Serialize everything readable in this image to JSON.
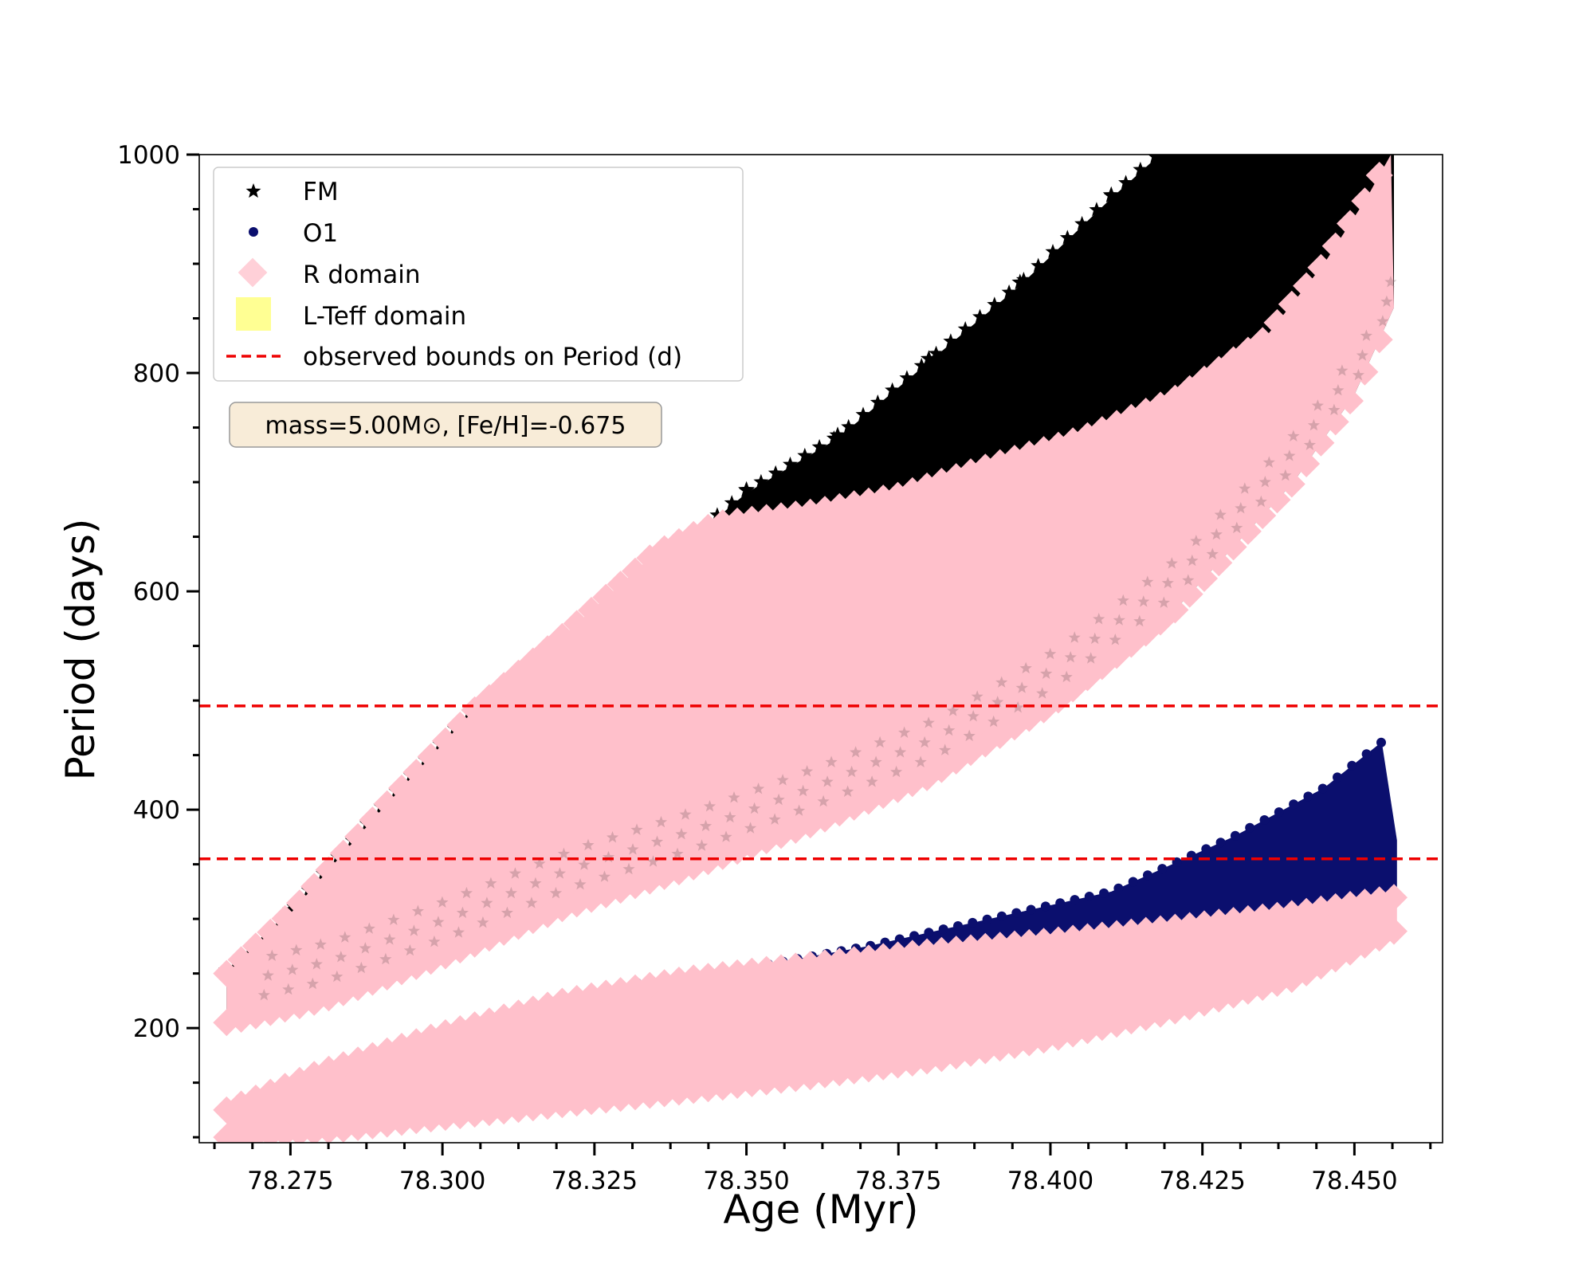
{
  "chart_data": {
    "type": "scatter",
    "xlabel": "Age (Myr)",
    "ylabel": "Period (days)",
    "xlim": [
      78.26,
      78.4645
    ],
    "ylim": [
      95,
      1000
    ],
    "x_ticks": [
      78.275,
      78.3,
      78.325,
      78.35,
      78.375,
      78.4,
      78.425,
      78.45
    ],
    "x_tick_labels": [
      "78.275",
      "78.300",
      "78.325",
      "78.350",
      "78.375",
      "78.400",
      "78.425",
      "78.450"
    ],
    "y_ticks": [
      200,
      400,
      600,
      800,
      1000
    ],
    "y_tick_labels": [
      "200",
      "400",
      "600",
      "800",
      "1000"
    ],
    "legend_position": "upper-left",
    "annotation": "mass=5.00M⊙, [Fe/H]=-0.675",
    "series": [
      {
        "name": "FM",
        "marker": "star",
        "color": "#000000",
        "upper_edge": [
          [
            78.2645,
            250
          ],
          [
            78.275,
            305
          ],
          [
            78.29,
            400
          ],
          [
            78.305,
            490
          ],
          [
            78.32,
            545
          ],
          [
            78.335,
            620
          ],
          [
            78.35,
            690
          ],
          [
            78.365,
            740
          ],
          [
            78.38,
            810
          ],
          [
            78.395,
            880
          ],
          [
            78.41,
            960
          ],
          [
            78.418,
            1000
          ],
          [
            78.4565,
            1000
          ]
        ],
        "lower_edge": [
          [
            78.2645,
            205
          ],
          [
            78.28,
            225
          ],
          [
            78.3,
            265
          ],
          [
            78.32,
            310
          ],
          [
            78.34,
            345
          ],
          [
            78.36,
            385
          ],
          [
            78.38,
            430
          ],
          [
            78.4,
            495
          ],
          [
            78.42,
            580
          ],
          [
            78.44,
            700
          ],
          [
            78.45,
            780
          ],
          [
            78.4565,
            860
          ]
        ]
      },
      {
        "name": "O1",
        "marker": "circle",
        "color": "#0b0f6e",
        "upper_edge": [
          [
            78.33,
            240
          ],
          [
            78.35,
            255
          ],
          [
            78.37,
            275
          ],
          [
            78.39,
            300
          ],
          [
            78.41,
            325
          ],
          [
            78.43,
            375
          ],
          [
            78.445,
            420
          ],
          [
            78.4545,
            462
          ],
          [
            78.457,
            372
          ]
        ],
        "lower_edge": [
          [
            78.33,
            220
          ],
          [
            78.35,
            232
          ],
          [
            78.37,
            245
          ],
          [
            78.39,
            262
          ],
          [
            78.41,
            282
          ],
          [
            78.43,
            300
          ],
          [
            78.445,
            312
          ],
          [
            78.457,
            318
          ]
        ]
      },
      {
        "name": "R domain",
        "marker": "diamond",
        "color": "#ffc0cb",
        "regions": [
          {
            "upper_edge": [
              [
                78.2645,
                250
              ],
              [
                78.275,
                305
              ],
              [
                78.29,
                400
              ],
              [
                78.305,
                490
              ],
              [
                78.32,
                560
              ],
              [
                78.335,
                635
              ],
              [
                78.345,
                662
              ],
              [
                78.36,
                672
              ],
              [
                78.375,
                688
              ],
              [
                78.39,
                715
              ],
              [
                78.405,
                740
              ],
              [
                78.42,
                775
              ],
              [
                78.435,
                830
              ],
              [
                78.445,
                900
              ],
              [
                78.452,
                960
              ],
              [
                78.456,
                1000
              ]
            ],
            "lower_edge": [
              [
                78.2645,
                205
              ],
              [
                78.28,
                225
              ],
              [
                78.3,
                265
              ],
              [
                78.32,
                310
              ],
              [
                78.34,
                345
              ],
              [
                78.36,
                385
              ],
              [
                78.38,
                430
              ],
              [
                78.4,
                495
              ],
              [
                78.42,
                580
              ],
              [
                78.44,
                700
              ],
              [
                78.45,
                780
              ],
              [
                78.4565,
                860
              ]
            ]
          },
          {
            "upper_edge": [
              [
                78.2645,
                125
              ],
              [
                78.28,
                160
              ],
              [
                78.3,
                195
              ],
              [
                78.32,
                225
              ],
              [
                78.34,
                245
              ],
              [
                78.36,
                258
              ],
              [
                78.38,
                270
              ],
              [
                78.4,
                280
              ],
              [
                78.42,
                292
              ],
              [
                78.44,
                305
              ],
              [
                78.457,
                320
              ]
            ],
            "lower_edge": [
              [
                78.2645,
                100
              ],
              [
                78.28,
                105
              ],
              [
                78.3,
                118
              ],
              [
                78.32,
                130
              ],
              [
                78.34,
                142
              ],
              [
                78.36,
                155
              ],
              [
                78.38,
                170
              ],
              [
                78.4,
                190
              ],
              [
                78.42,
                215
              ],
              [
                78.44,
                245
              ],
              [
                78.457,
                290
              ]
            ]
          }
        ]
      },
      {
        "name": "L-Teff domain",
        "marker": "square",
        "color": "#ffff80"
      },
      {
        "name": "observed bounds on Period (d)",
        "marker": "dashed-line",
        "color": "#ee0000",
        "hlines": [
          495,
          355
        ]
      }
    ]
  }
}
